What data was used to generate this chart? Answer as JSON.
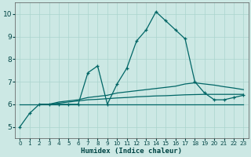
{
  "xlabel": "Humidex (Indice chaleur)",
  "xlim": [
    -0.5,
    23.5
  ],
  "ylim": [
    4.5,
    10.5
  ],
  "yticks": [
    5,
    6,
    7,
    8,
    9,
    10
  ],
  "xticks": [
    0,
    1,
    2,
    3,
    4,
    5,
    6,
    7,
    8,
    9,
    10,
    11,
    12,
    13,
    14,
    15,
    16,
    17,
    18,
    19,
    20,
    21,
    22,
    23
  ],
  "bg_color": "#cce8e4",
  "grid_color": "#aad4ce",
  "line_color": "#006666",
  "series": [
    {
      "x": [
        0,
        1,
        2,
        3,
        4,
        5,
        6,
        7,
        8,
        9,
        10,
        11,
        12,
        13,
        14,
        15,
        16,
        17,
        18,
        19,
        20,
        21,
        22,
        23
      ],
      "y": [
        5.0,
        5.6,
        6.0,
        6.0,
        6.0,
        6.0,
        6.0,
        7.4,
        7.7,
        6.0,
        6.9,
        7.6,
        8.8,
        9.3,
        10.1,
        9.7,
        9.3,
        8.9,
        7.0,
        6.5,
        6.2,
        6.2,
        6.3,
        6.4
      ],
      "marker": true
    },
    {
      "x": [
        0,
        1,
        2,
        3,
        4,
        5,
        6,
        7,
        8,
        9,
        10,
        11,
        12,
        13,
        14,
        15,
        16,
        17,
        18,
        19,
        20,
        21,
        22,
        23
      ],
      "y": [
        6.0,
        6.0,
        6.0,
        6.0,
        6.0,
        6.0,
        6.0,
        6.0,
        6.0,
        6.0,
        6.0,
        6.0,
        6.0,
        6.0,
        6.0,
        6.0,
        6.0,
        6.0,
        6.0,
        6.0,
        6.0,
        6.0,
        6.0,
        6.0
      ],
      "marker": false
    },
    {
      "x": [
        2,
        3,
        4,
        5,
        6,
        7,
        8,
        9,
        10,
        11,
        12,
        13,
        14,
        15,
        16,
        17,
        18,
        19,
        20,
        21,
        22,
        23
      ],
      "y": [
        6.0,
        6.0,
        6.1,
        6.15,
        6.2,
        6.3,
        6.35,
        6.4,
        6.5,
        6.55,
        6.6,
        6.65,
        6.7,
        6.75,
        6.8,
        6.9,
        6.95,
        6.9,
        6.85,
        6.78,
        6.72,
        6.65
      ],
      "marker": false
    },
    {
      "x": [
        3,
        4,
        5,
        6,
        7,
        8,
        9,
        10,
        11,
        12,
        13,
        14,
        15,
        16,
        17,
        18,
        19,
        20,
        21,
        22,
        23
      ],
      "y": [
        6.0,
        6.05,
        6.1,
        6.15,
        6.2,
        6.22,
        6.25,
        6.28,
        6.3,
        6.33,
        6.35,
        6.37,
        6.38,
        6.4,
        6.42,
        6.43,
        6.44,
        6.44,
        6.44,
        6.44,
        6.44
      ],
      "marker": false
    }
  ]
}
